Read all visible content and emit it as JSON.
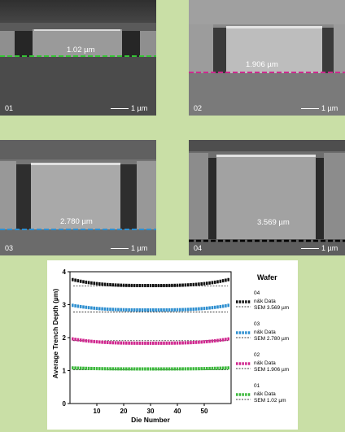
{
  "panels": [
    {
      "id": "01",
      "scale": "1 µm",
      "measurement": "1.02 µm",
      "line_color": "#35c435"
    },
    {
      "id": "02",
      "scale": "1 µm",
      "measurement": "1.906 µm",
      "line_color": "#cc2b8e"
    },
    {
      "id": "03",
      "scale": "1 µm",
      "measurement": "2.780 µm",
      "line_color": "#2e8fd0"
    },
    {
      "id": "04",
      "scale": "1 µm",
      "measurement": "3.569 µm",
      "line_color": "#000000"
    }
  ],
  "chart_data": {
    "type": "scatter",
    "title": "",
    "xlabel": "Die Number",
    "ylabel": "Average Trench Depth (µm)",
    "xlim": [
      0,
      60
    ],
    "ylim": [
      0,
      4
    ],
    "xticks": [
      "10",
      "20",
      "30",
      "40",
      "50"
    ],
    "yticks": [
      "0",
      "1",
      "2",
      "3",
      "4"
    ],
    "legend_title": "Wafer",
    "legend_position": "right",
    "grid": false,
    "series": [
      {
        "wafer": "04",
        "name": "n&k Data",
        "sem_label": "SEM 3.569 µm",
        "color": "#111111",
        "sem": 3.569,
        "center": 3.58,
        "edge": 3.76
      },
      {
        "wafer": "03",
        "name": "n&k Data",
        "sem_label": "SEM 2.780 µm",
        "color": "#2e8fd0",
        "sem": 2.78,
        "center": 2.84,
        "edge": 2.98
      },
      {
        "wafer": "02",
        "name": "n&k Data",
        "sem_label": "SEM 1.906 µm",
        "color": "#d0288f",
        "sem": 1.906,
        "center": 1.83,
        "edge": 1.96
      },
      {
        "wafer": "01",
        "name": "n&k Data",
        "sem_label": "SEM 1.02 µm",
        "color": "#3cb83c",
        "sem": 1.02,
        "center": 1.05,
        "edge": 1.08
      }
    ]
  }
}
